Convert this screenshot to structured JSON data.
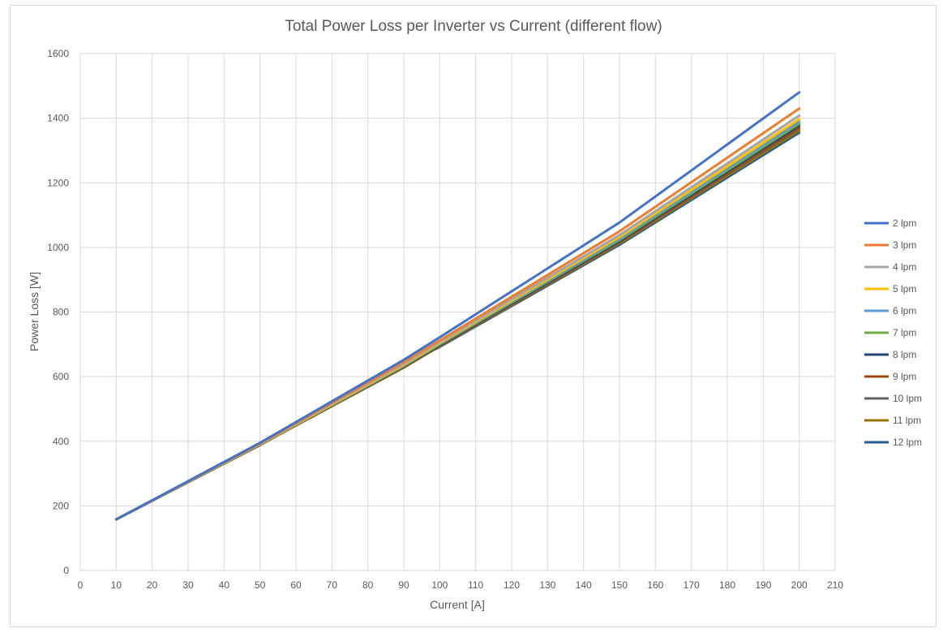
{
  "chart_data": {
    "type": "line",
    "title": "Total Power Loss per Inverter vs Current (different flow)",
    "xlabel": "Current  [A]",
    "ylabel": "Power Loss [W]",
    "xlim": [
      0,
      210
    ],
    "ylim": [
      0,
      1600
    ],
    "xticks": [
      0,
      10,
      20,
      30,
      40,
      50,
      60,
      70,
      80,
      90,
      100,
      110,
      120,
      130,
      140,
      150,
      160,
      170,
      180,
      190,
      200,
      210
    ],
    "yticks": [
      0,
      200,
      400,
      600,
      800,
      1000,
      1200,
      1400,
      1600
    ],
    "grid": true,
    "legend_position": "right",
    "x": [
      10,
      50,
      90,
      100,
      150,
      200
    ],
    "series": [
      {
        "name": "2 lpm",
        "color": "#4472c4",
        "values": [
          158,
          395,
          652,
          722,
          1077,
          1480
        ]
      },
      {
        "name": "3 lpm",
        "color": "#ed7d31",
        "values": [
          158,
          393,
          645,
          712,
          1050,
          1430
        ]
      },
      {
        "name": "4 lpm",
        "color": "#a5a5a5",
        "values": [
          158,
          392,
          640,
          707,
          1038,
          1408
        ]
      },
      {
        "name": "5 lpm",
        "color": "#ffc000",
        "values": [
          158,
          391,
          637,
          704,
          1032,
          1397
        ]
      },
      {
        "name": "6 lpm",
        "color": "#5b9bd5",
        "values": [
          158,
          391,
          635,
          702,
          1027,
          1390
        ]
      },
      {
        "name": "7 lpm",
        "color": "#70ad47",
        "values": [
          158,
          390,
          633,
          700,
          1023,
          1383
        ]
      },
      {
        "name": "8 lpm",
        "color": "#264478",
        "values": [
          158,
          390,
          632,
          698,
          1020,
          1378
        ]
      },
      {
        "name": "9 lpm",
        "color": "#9e480e",
        "values": [
          158,
          389,
          630,
          696,
          1017,
          1372
        ]
      },
      {
        "name": "10 lpm",
        "color": "#636363",
        "values": [
          158,
          389,
          629,
          695,
          1015,
          1368
        ]
      },
      {
        "name": "11 lpm",
        "color": "#997300",
        "values": [
          158,
          389,
          628,
          694,
          1012,
          1362
        ]
      },
      {
        "name": "12 lpm",
        "color": "#255e91",
        "values": [
          158,
          388,
          636,
          692,
          1008,
          1355
        ]
      }
    ]
  }
}
